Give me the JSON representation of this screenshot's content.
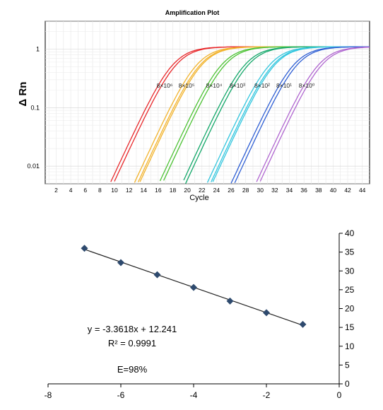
{
  "chart_data": [
    {
      "type": "line",
      "title": "Amplification Plot",
      "xlabel": "Cycle",
      "ylabel": "Δ Rn",
      "yscale": "log",
      "xlim": [
        0.5,
        45
      ],
      "ylim": [
        0.005,
        3
      ],
      "x_ticks": [
        "2",
        "4",
        "6",
        "8",
        "10",
        "12",
        "14",
        "16",
        "18",
        "20",
        "22",
        "24",
        "26",
        "28",
        "30",
        "32",
        "34",
        "36",
        "38",
        "40",
        "42",
        "44"
      ],
      "y_ticks": [
        "1",
        "0.1",
        "0.01"
      ],
      "grid": true,
      "plateau": 1.1,
      "series": [
        {
          "name": "8×10⁶",
          "color": "#e8282b",
          "ct": 14.6,
          "replicates": 2
        },
        {
          "name": "8×10⁵",
          "color": "#f2b32c",
          "ct": 17.9,
          "replicates": 3
        },
        {
          "name": "8×10⁴",
          "color": "#4cc233",
          "ct": 21.3,
          "replicates": 2
        },
        {
          "name": "8×10³",
          "color": "#14a86a",
          "ct": 24.5,
          "replicates": 2
        },
        {
          "name": "8×10²",
          "color": "#33c6de",
          "ct": 27.9,
          "replicates": 3
        },
        {
          "name": "8×10¹",
          "color": "#2f5fd4",
          "ct": 31.2,
          "replicates": 2
        },
        {
          "name": "8×10⁰",
          "color": "#b066d0",
          "ct": 34.6,
          "replicates": 2
        }
      ]
    },
    {
      "type": "scatter",
      "title": "",
      "xlabel": "",
      "ylabel": "",
      "xlim": [
        -8,
        0
      ],
      "ylim": [
        0,
        40
      ],
      "x_ticks": [
        -8,
        -6,
        -4,
        -2,
        0
      ],
      "y_ticks": [
        0,
        5,
        10,
        15,
        20,
        25,
        30,
        35,
        40
      ],
      "points": [
        {
          "x": -7,
          "y": 36.0
        },
        {
          "x": -6,
          "y": 32.2
        },
        {
          "x": -5,
          "y": 29.0
        },
        {
          "x": -4,
          "y": 25.6
        },
        {
          "x": -3,
          "y": 22.0
        },
        {
          "x": -2,
          "y": 18.9
        },
        {
          "x": -1,
          "y": 15.8
        }
      ],
      "trendline": {
        "slope": -3.3618,
        "intercept": 12.241
      },
      "annotations": [
        "y = -3.3618x + 12.241",
        "R² = 0.9991",
        "E=98%"
      ],
      "marker_color": "#2e4a6e"
    }
  ]
}
